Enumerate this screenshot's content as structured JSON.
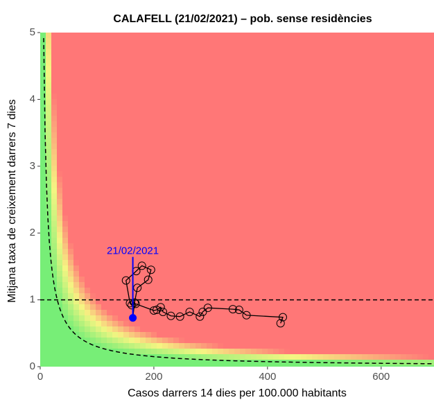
{
  "chart_data": {
    "type": "line",
    "title": "CALAFELL (21/02/2021) – pob. sense residències",
    "x_label": "Casos darrers 14 dies per 100.000 habitants",
    "y_label": "Mitjana taxa de creixement darrers 7 dies",
    "annotation": "21/02/2021",
    "color": "#000000",
    "highlight_color": "#0000ff",
    "x": [
      423,
      427,
      363,
      350,
      339,
      295,
      286,
      281,
      263,
      246,
      230,
      216,
      212,
      205,
      200,
      168,
      161,
      158,
      151,
      169,
      179,
      195,
      190,
      171,
      166,
      163
    ],
    "values": [
      0.65,
      0.74,
      0.77,
      0.85,
      0.86,
      0.88,
      0.82,
      0.75,
      0.82,
      0.75,
      0.76,
      0.82,
      0.89,
      0.85,
      0.84,
      0.94,
      0.92,
      0.95,
      1.29,
      1.43,
      1.51,
      1.45,
      1.3,
      1.18,
      0.96,
      0.73
    ],
    "xlim": [
      0,
      693
    ],
    "ylim": [
      0,
      5
    ],
    "xticks": [
      0,
      200,
      400,
      600
    ],
    "yticks": [
      0,
      1,
      2,
      3,
      4,
      5
    ]
  }
}
